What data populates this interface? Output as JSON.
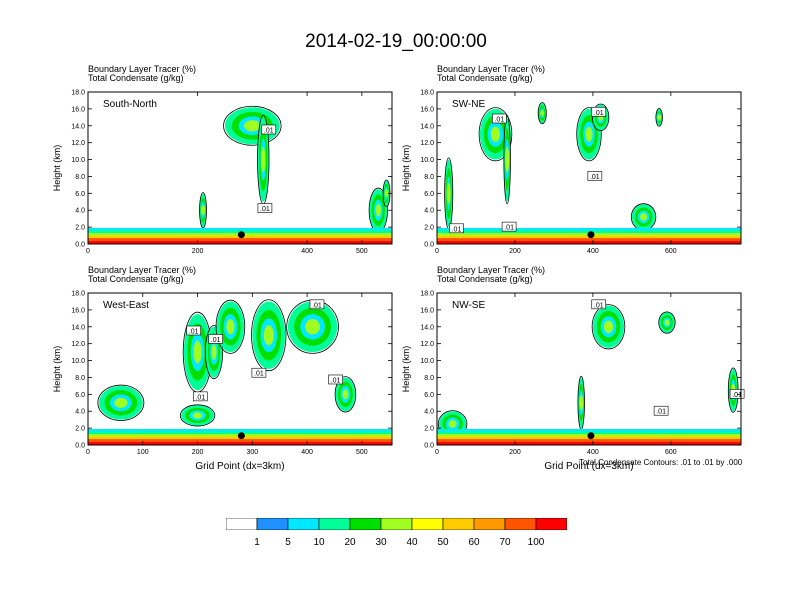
{
  "title": "2014-02-19_00:00:00",
  "colors": {
    "field": "#f0f0f0",
    "contour": "#000000",
    "levels": [
      "#ffffff",
      "#1e90ff",
      "#00e8ff",
      "#00ff99",
      "#00e000",
      "#a0ff20",
      "#ffff00",
      "#ffcc00",
      "#ff9900",
      "#ff5500",
      "#ff0000"
    ]
  },
  "colorbar": {
    "labels": [
      "1",
      "5",
      "10",
      "20",
      "30",
      "40",
      "50",
      "60",
      "70",
      "100"
    ]
  },
  "contour_note": "Total Condensate Contours: .01 to .01 by .000",
  "chart_data": [
    {
      "type": "heatmap",
      "name": "South-North",
      "subtitle_1": "Boundary Layer Tracer   (%)",
      "subtitle_2": "Total Condensate   (g/kg)",
      "ylabel": "Height (km)",
      "xlabel": "",
      "xlim": [
        0,
        555
      ],
      "ylim": [
        0,
        18
      ],
      "xticks": [
        "0",
        "200",
        "400",
        "500"
      ],
      "xtick_vals": [
        0,
        200,
        400,
        500
      ],
      "yticks": [
        "0.0",
        "2.0",
        "4.0",
        "6.0",
        "8.0",
        "10.0",
        "12.0",
        "14.0",
        "16.0",
        "18.0"
      ],
      "marker_x": 280,
      "contour_labels": [
        {
          "x": 330,
          "y": 13.5,
          "t": ".01"
        },
        {
          "x": 323,
          "y": 4.2,
          "t": ".01"
        }
      ],
      "blobs": [
        [
          300,
          14,
          50,
          2.2
        ],
        [
          320,
          10,
          10,
          5
        ],
        [
          210,
          4,
          6,
          2
        ],
        [
          530,
          4,
          16,
          2.5
        ],
        [
          545,
          6,
          6,
          1.5
        ]
      ]
    },
    {
      "type": "heatmap",
      "name": "SW-NE",
      "subtitle_1": "Boundary Layer Tracer   (%)",
      "subtitle_2": "Total Condensate   (g/kg)",
      "ylabel": "Height (km)",
      "xlabel": "",
      "xlim": [
        0,
        780
      ],
      "ylim": [
        0,
        18
      ],
      "xticks": [
        "0",
        "200",
        "400",
        "600"
      ],
      "xtick_vals": [
        0,
        200,
        400,
        600
      ],
      "yticks": [
        "0.0",
        "2.0",
        "4.0",
        "6.0",
        "8.0",
        "10.0",
        "12.0",
        "14.0",
        "16.0",
        "18.0"
      ],
      "marker_x": 395,
      "contour_labels": [
        {
          "x": 415,
          "y": 15.6,
          "t": ".01"
        },
        {
          "x": 405,
          "y": 8,
          "t": ".01"
        },
        {
          "x": 160,
          "y": 14.8,
          "t": ".01"
        },
        {
          "x": 50,
          "y": 1.8,
          "t": ".01"
        },
        {
          "x": 185,
          "y": 2,
          "t": ".01"
        }
      ],
      "blobs": [
        [
          150,
          13,
          40,
          3
        ],
        [
          180,
          10,
          8,
          5
        ],
        [
          270,
          15.5,
          10,
          1.2
        ],
        [
          390,
          13,
          30,
          3
        ],
        [
          420,
          15,
          20,
          1.5
        ],
        [
          530,
          3.2,
          30,
          1.5
        ],
        [
          570,
          15,
          8,
          1
        ],
        [
          30,
          6,
          10,
          4
        ]
      ]
    },
    {
      "type": "heatmap",
      "name": "West-East",
      "subtitle_1": "Boundary Layer Tracer   (%)",
      "subtitle_2": "Total Condensate   (g/kg)",
      "ylabel": "Height (km)",
      "xlabel": "Grid Point (dx=3km)",
      "xlim": [
        0,
        555
      ],
      "ylim": [
        0,
        18
      ],
      "xticks": [
        "0",
        "100",
        "200",
        "300",
        "400",
        "500"
      ],
      "xtick_vals": [
        0,
        100,
        200,
        300,
        400,
        500
      ],
      "yticks": [
        "0.0",
        "2.0",
        "4.0",
        "6.0",
        "8.0",
        "10.0",
        "12.0",
        "14.0",
        "16.0",
        "18.0"
      ],
      "marker_x": 280,
      "contour_labels": [
        {
          "x": 193,
          "y": 13.5,
          "t": ".01"
        },
        {
          "x": 233,
          "y": 12.5,
          "t": ".01"
        },
        {
          "x": 312,
          "y": 8.5,
          "t": ".01"
        },
        {
          "x": 452,
          "y": 7.7,
          "t": ".01"
        },
        {
          "x": 418,
          "y": 16.6,
          "t": ".01"
        },
        {
          "x": 205,
          "y": 5.7,
          "t": ".01"
        }
      ],
      "blobs": [
        [
          60,
          5,
          40,
          2
        ],
        [
          200,
          11,
          25,
          4.5
        ],
        [
          230,
          11,
          15,
          3
        ],
        [
          260,
          14,
          25,
          3
        ],
        [
          330,
          13,
          30,
          4
        ],
        [
          410,
          14,
          45,
          3
        ],
        [
          470,
          6,
          18,
          2
        ],
        [
          200,
          3.5,
          30,
          1.2
        ]
      ]
    },
    {
      "type": "heatmap",
      "name": "NW-SE",
      "subtitle_1": "Boundary Layer Tracer   (%)",
      "subtitle_2": "Total Condensate   (g/kg)",
      "ylabel": "Height (km)",
      "xlabel": "Grid Point (dx=3km)",
      "xlim": [
        0,
        780
      ],
      "ylim": [
        0,
        18
      ],
      "xticks": [
        "0",
        "200",
        "400",
        "600"
      ],
      "xtick_vals": [
        0,
        200,
        400,
        600
      ],
      "yticks": [
        "0.0",
        "2.0",
        "4.0",
        "6.0",
        "8.0",
        "10.0",
        "12.0",
        "14.0",
        "16.0",
        "18.0"
      ],
      "marker_x": 395,
      "contour_labels": [
        {
          "x": 415,
          "y": 16.6,
          "t": ".01"
        },
        {
          "x": 575,
          "y": 4,
          "t": ".01"
        },
        {
          "x": 770,
          "y": 6,
          "t": ".01"
        }
      ],
      "blobs": [
        [
          440,
          14,
          40,
          2.5
        ],
        [
          590,
          14.5,
          20,
          1.2
        ],
        [
          40,
          2.5,
          35,
          1.5
        ],
        [
          370,
          5,
          8,
          3
        ],
        [
          760,
          6.5,
          12,
          2.5
        ]
      ]
    }
  ]
}
